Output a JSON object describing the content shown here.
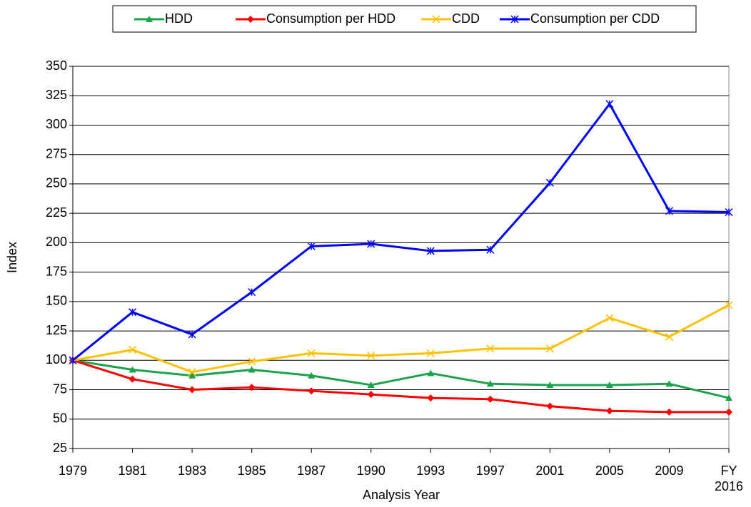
{
  "chart_data": {
    "type": "line",
    "x_label": "Analysis Year",
    "y_label": "Index",
    "categories": [
      "1979",
      "1981",
      "1983",
      "1985",
      "1987",
      "1990",
      "1993",
      "1997",
      "2001",
      "2005",
      "2009",
      "FY\n2016"
    ],
    "series": [
      {
        "name": "HDD",
        "color": "#1aa34a",
        "marker": "triangle",
        "values": [
          100,
          92,
          87,
          92,
          87,
          79,
          89,
          80,
          79,
          79,
          80,
          68
        ]
      },
      {
        "name": "Consumption per HDD",
        "color": "#ff0000",
        "marker": "diamond",
        "values": [
          100,
          84,
          75,
          77,
          74,
          71,
          68,
          67,
          61,
          57,
          56,
          56
        ]
      },
      {
        "name": "CDD",
        "color": "#ffc000",
        "marker": "x",
        "values": [
          100,
          109,
          90,
          99,
          106,
          104,
          106,
          110,
          110,
          136,
          120,
          147
        ]
      },
      {
        "name": "Consumption per CDD",
        "color": "#0000ff",
        "marker": "star",
        "values": [
          100,
          141,
          122,
          158,
          197,
          199,
          193,
          194,
          251,
          318,
          227,
          226
        ]
      }
    ],
    "ylim": [
      25,
      350
    ],
    "yticks": [
      25,
      50,
      75,
      100,
      125,
      150,
      175,
      200,
      225,
      250,
      275,
      300,
      325,
      350
    ],
    "grid": true,
    "legend": "top"
  }
}
